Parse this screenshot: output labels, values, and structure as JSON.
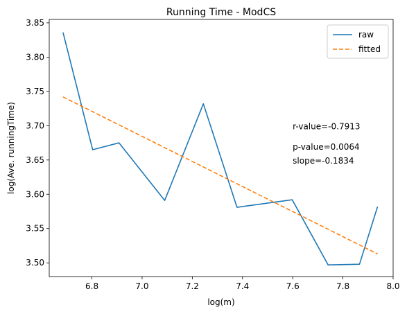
{
  "chart_data": {
    "type": "line",
    "title": "Running Time - ModCS",
    "xlabel": "log(m)",
    "ylabel": "log(Ave. runningTime)",
    "xlim": [
      6.63,
      8.0
    ],
    "ylim": [
      3.48,
      3.855
    ],
    "x_ticks": [
      6.8,
      7.0,
      7.2,
      7.4,
      7.6,
      7.8,
      8.0
    ],
    "x_tick_labels": [
      "6.8",
      "7.0",
      "7.2",
      "7.4",
      "7.6",
      "7.8",
      "8.0"
    ],
    "y_ticks": [
      3.5,
      3.55,
      3.6,
      3.65,
      3.7,
      3.75,
      3.8,
      3.85
    ],
    "y_tick_labels": [
      "3.50",
      "3.55",
      "3.60",
      "3.65",
      "3.70",
      "3.75",
      "3.80",
      "3.85"
    ],
    "grid": false,
    "legend_position": "top-right",
    "series": [
      {
        "name": "raw",
        "color": "#1f77b4",
        "style": "solid",
        "x": [
          6.685,
          6.803,
          6.908,
          7.09,
          7.244,
          7.378,
          7.598,
          7.741,
          7.866,
          7.938
        ],
        "y": [
          3.836,
          3.665,
          3.675,
          3.591,
          3.732,
          3.581,
          3.592,
          3.497,
          3.498,
          3.582
        ]
      },
      {
        "name": "fitted",
        "color": "#ff7f0e",
        "style": "dashed",
        "x": [
          6.685,
          7.938
        ],
        "y": [
          3.742,
          3.513
        ]
      }
    ],
    "annotations": [
      {
        "text": "r-value=-0.7913",
        "x": 7.6,
        "y": 3.7
      },
      {
        "text": "p-value=0.0064",
        "x": 7.6,
        "y": 3.67
      },
      {
        "text": "slope=-0.1834",
        "x": 7.6,
        "y": 3.65
      }
    ]
  }
}
